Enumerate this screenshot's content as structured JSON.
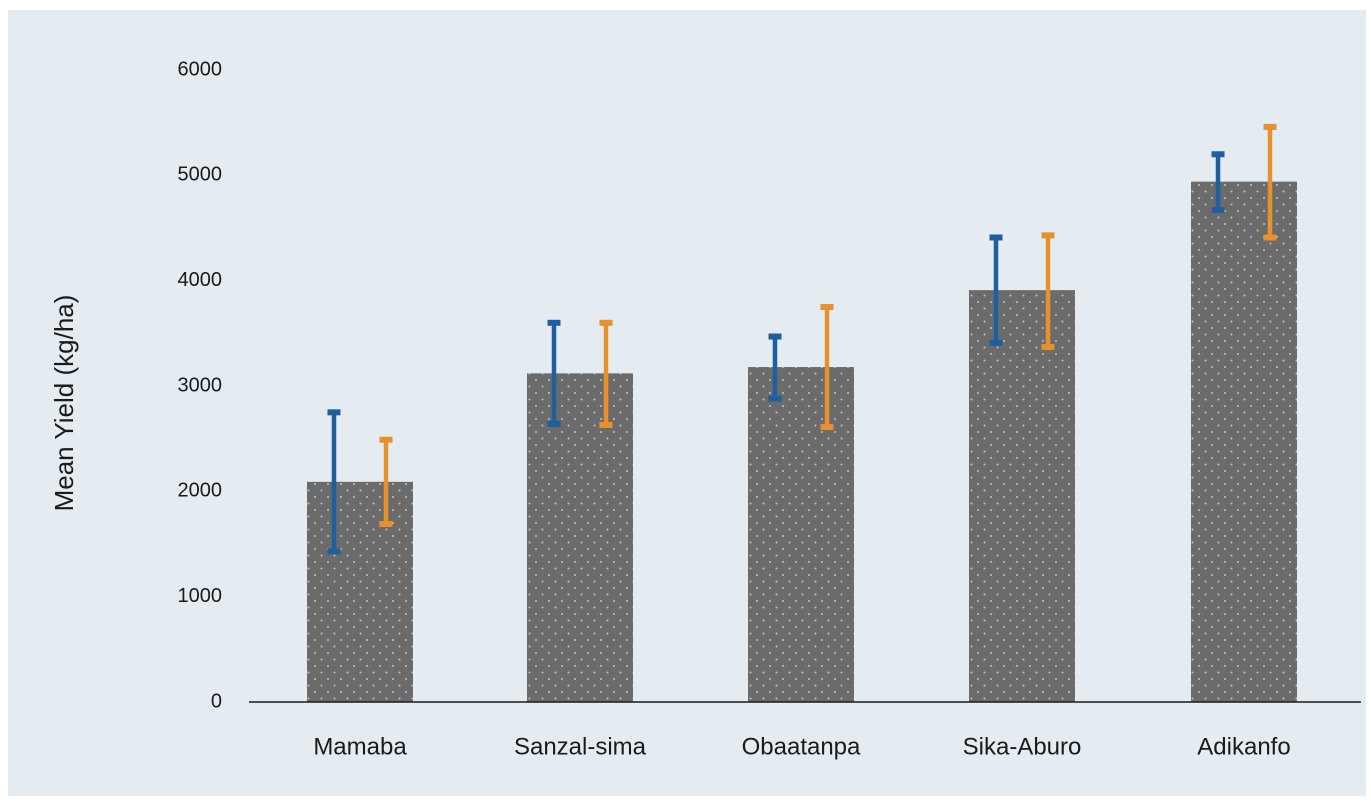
{
  "chart_data": {
    "type": "bar",
    "ylabel": "Mean Yield (kg/ha)",
    "xlabel": "",
    "ylim": [
      0,
      6000
    ],
    "yticks": [
      "0",
      "1000",
      "2000",
      "3000",
      "4000",
      "5000",
      "6000"
    ],
    "grid": false,
    "categories": [
      "Mamaba",
      "Sanzal-sima",
      "Obaatanpa",
      "Sika-Aburo",
      "Adikanfo"
    ],
    "bar_color": "#6b6b6b",
    "series": [
      {
        "values": [
          2090,
          3120,
          3180,
          3910,
          4940
        ],
        "error_low": [
          1430,
          2640,
          2880,
          3410,
          4670
        ],
        "error_high": [
          2750,
          3600,
          3470,
          4410,
          5200
        ],
        "error_color": "#1f5f9e"
      },
      {
        "values": [
          2090,
          3120,
          3180,
          3910,
          4940
        ],
        "error_low": [
          1690,
          2630,
          2610,
          3370,
          4410
        ],
        "error_high": [
          2490,
          3600,
          3750,
          4430,
          5460
        ],
        "error_color": "#e6912e"
      }
    ]
  }
}
